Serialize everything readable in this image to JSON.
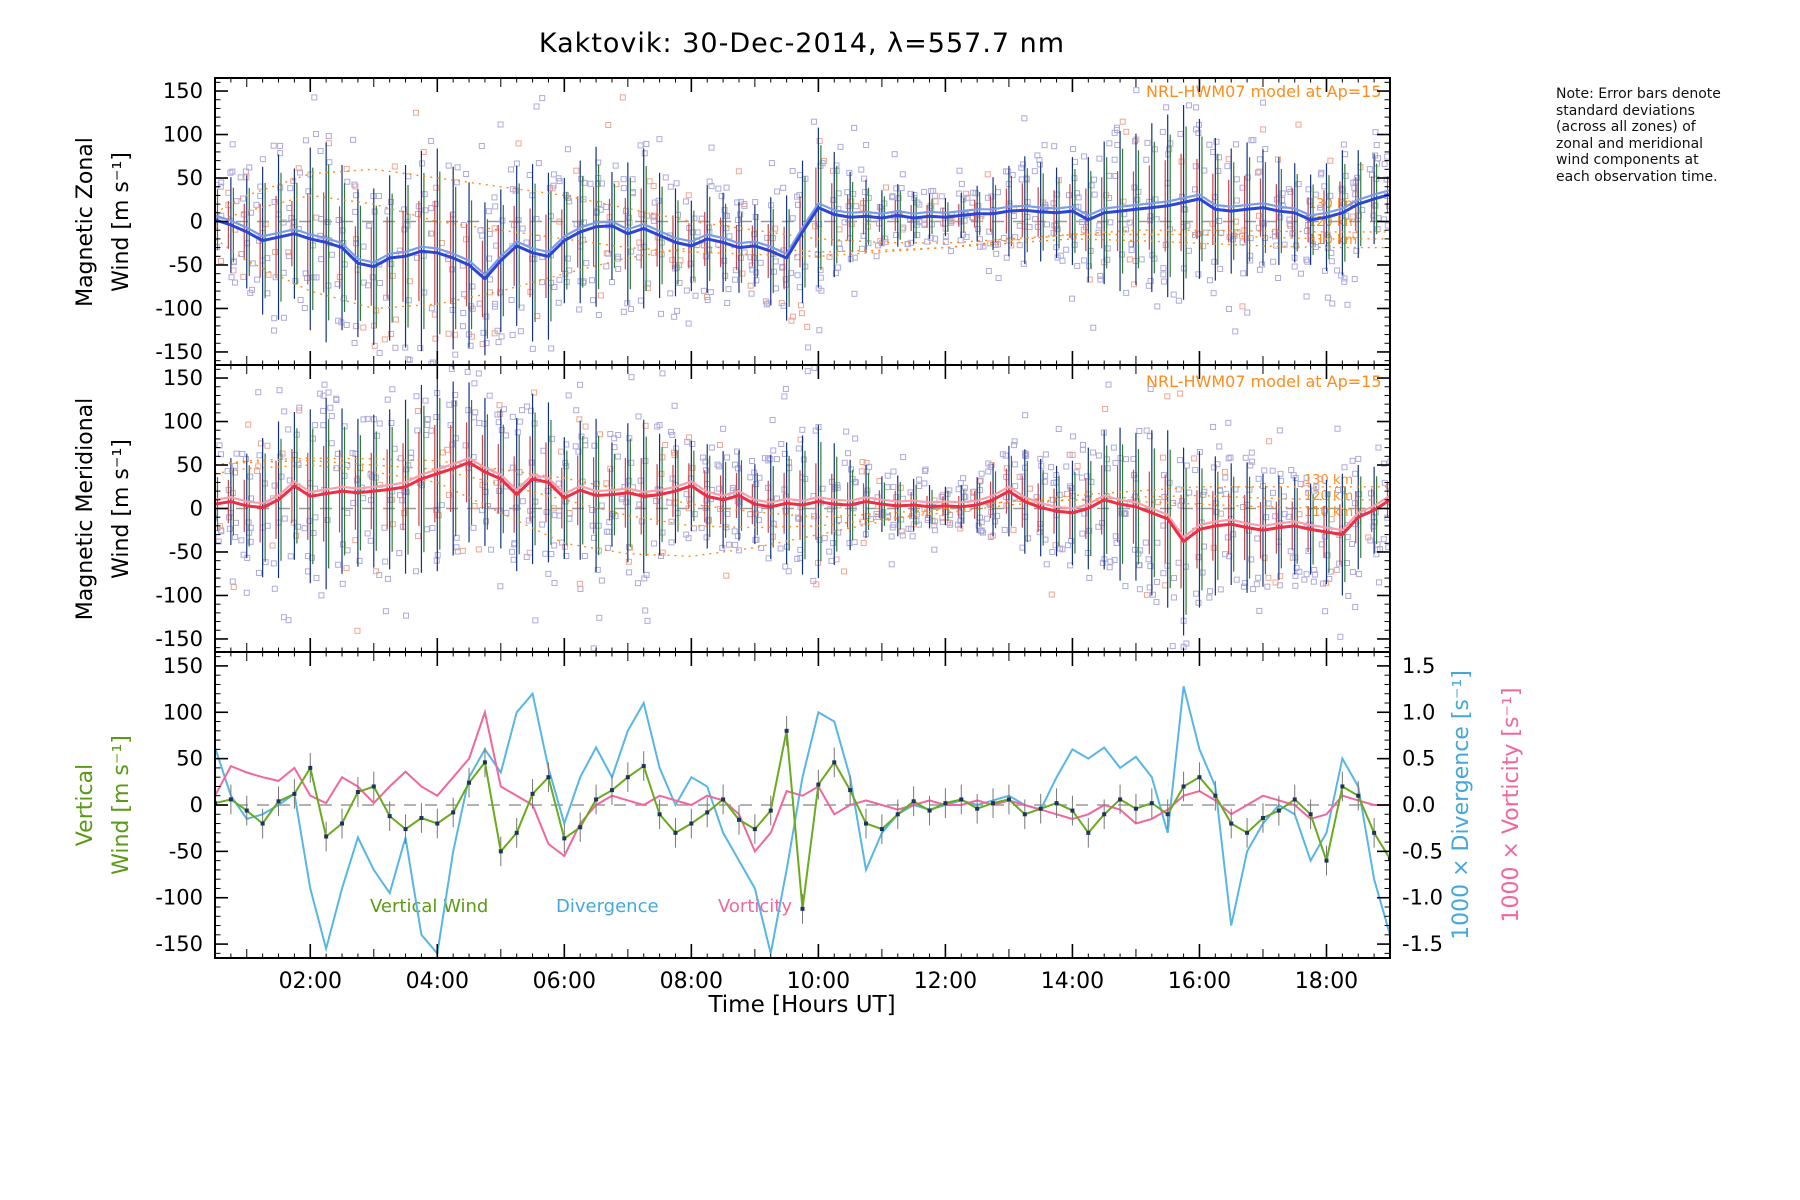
{
  "title": "Kaktovik: 30-Dec-2014, λ=557.7 nm",
  "note": "Note: Error bars denote standard deviations (across all zones) of zonal and meridional wind components at each observation time.",
  "xlabel": "Time [Hours UT]",
  "labels": {
    "panel1_line1": "Magnetic Zonal",
    "panel1_line2": "Wind [m s⁻¹]",
    "panel2_line1": "Magnetic Meridional",
    "panel2_line2": "Wind [m s⁻¹]",
    "panel3_line1": "Vertical",
    "panel3_line2": "Wind [m s⁻¹]",
    "right_div": "1000 × Divergence [s⁻¹]",
    "right_vort": "1000 × Vorticity [s⁻¹]",
    "model_label": "NRL-HWM07 model at Ap=15",
    "alt_130": "130 km",
    "alt_120": "120 km",
    "alt_110": "110 km",
    "legend_vertical": "Vertical Wind",
    "legend_divergence": "Divergence",
    "legend_vorticity": "Vorticity"
  },
  "colors": {
    "zonal_line": "#2b46d6",
    "zonal_line_light": "#7d9ce8",
    "meridional_line": "#ee2e44",
    "meridional_line_light": "#f6a0ae",
    "vertical_wind": "#6aaa1e",
    "divergence": "#58b6e4",
    "vorticity": "#f0679e",
    "model": "#ff8c1a",
    "scatter": "#aeaadc",
    "scatter_alt": "#efa592",
    "errbar_navy": "#16337f",
    "errbar_green": "#2f7d32",
    "errbar_red": "#cf4444",
    "zero_line": "#999999"
  },
  "chart_data": {
    "type": "line",
    "title": "Kaktovik: 30-Dec-2014, λ=557.7 nm",
    "xlabel": "Time [Hours UT]",
    "x_range": [
      0.5,
      19.0
    ],
    "x_ticks": {
      "t": [
        2,
        4,
        6,
        8,
        10,
        12,
        14,
        16,
        18
      ],
      "labels": [
        "02:00",
        "04:00",
        "06:00",
        "08:00",
        "10:00",
        "12:00",
        "14:00",
        "16:00",
        "18:00"
      ]
    },
    "ylim_wind": [
      -165,
      165
    ],
    "y_ticks_wind": [
      150,
      100,
      50,
      0,
      -50,
      -100,
      -150
    ],
    "ylim_right": [
      -1.65,
      1.65
    ],
    "y_ticks_right": [
      1.5,
      1.0,
      0.5,
      0.0,
      -0.5,
      -1.0,
      -1.5
    ],
    "t_start": 0.5,
    "t_step": 0.25,
    "panels": [
      {
        "name": "magnetic-zonal-wind",
        "ylabel": "Magnetic Zonal Wind [m s⁻¹]",
        "series": [
          {
            "name": "zonal-wind",
            "color": "#2b46d6",
            "color_light": "#7d9ce8",
            "values": [
              2,
              -4,
              -12,
              -22,
              -18,
              -14,
              -20,
              -24,
              -30,
              -48,
              -52,
              -42,
              -40,
              -34,
              -36,
              -42,
              -50,
              -66,
              -45,
              -28,
              -36,
              -40,
              -22,
              -12,
              -6,
              -5,
              -14,
              -8,
              -16,
              -24,
              -28,
              -20,
              -24,
              -30,
              -28,
              -34,
              -42,
              -12,
              16,
              8,
              5,
              6,
              4,
              7,
              4,
              6,
              5,
              7,
              9,
              9,
              12,
              13,
              11,
              10,
              12,
              2,
              10,
              12,
              14,
              16,
              18,
              22,
              26,
              14,
              12,
              14,
              16,
              12,
              10,
              2,
              5,
              10,
              20,
              26,
              31
            ],
            "err": [
              45,
              55,
              65,
              85,
              95,
              75,
              105,
              115,
              95,
              85,
              90,
              95,
              105,
              115,
              120,
              105,
              95,
              88,
              82,
              92,
              102,
              96,
              72,
              82,
              92,
              62,
              82,
              92,
              72,
              62,
              52,
              62,
              57,
              52,
              47,
              62,
              72,
              82,
              92,
              72,
              52,
              42,
              32,
              36,
              30,
              26,
              22,
              26,
              32,
              42,
              52,
              62,
              57,
              52,
              62,
              72,
              82,
              92,
              87,
              97,
              105,
              112,
              92,
              82,
              72,
              77,
              67,
              62,
              57,
              52,
              62,
              72,
              62,
              52,
              42
            ]
          }
        ],
        "model": {
          "label": "NRL-HWM07 model at Ap=15",
          "t": [
            0.5,
            1,
            2,
            3,
            4,
            5,
            6,
            7,
            8,
            9,
            10,
            11,
            12,
            13,
            14,
            15,
            16,
            17,
            18,
            19
          ],
          "alt_110": [
            -20,
            -45,
            -80,
            -100,
            -95,
            -80,
            -60,
            -42,
            -30,
            -30,
            -35,
            -33,
            -30,
            -25,
            -20,
            -22,
            -25,
            -28,
            -30,
            -30
          ],
          "alt_120": [
            0,
            12,
            30,
            20,
            0,
            -10,
            -20,
            -30,
            -35,
            -38,
            -40,
            -35,
            -30,
            -22,
            -15,
            -15,
            -15,
            -18,
            -20,
            -20
          ],
          "alt_130": [
            10,
            30,
            55,
            60,
            50,
            40,
            30,
            15,
            0,
            -10,
            -20,
            -24,
            -25,
            -20,
            -15,
            -10,
            -10,
            -11,
            -12,
            -12
          ]
        }
      },
      {
        "name": "magnetic-meridional-wind",
        "ylabel": "Magnetic Meridional Wind [m s⁻¹]",
        "series": [
          {
            "name": "meridional-wind",
            "color": "#ee2e44",
            "color_light": "#f6a0ae",
            "values": [
              5,
              8,
              3,
              1,
              10,
              26,
              14,
              17,
              20,
              18,
              20,
              22,
              25,
              34,
              40,
              46,
              53,
              42,
              34,
              16,
              34,
              30,
              12,
              21,
              15,
              16,
              18,
              14,
              16,
              20,
              26,
              14,
              10,
              15,
              5,
              2,
              6,
              4,
              8,
              5,
              4,
              8,
              5,
              3,
              4,
              2,
              3,
              2,
              4,
              10,
              20,
              8,
              1,
              -3,
              -5,
              0,
              10,
              5,
              2,
              -5,
              -12,
              -38,
              -24,
              -20,
              -18,
              -22,
              -25,
              -22,
              -20,
              -24,
              -27,
              -30,
              -10,
              -2,
              10
            ],
            "err": [
              40,
              50,
              60,
              80,
              90,
              85,
              100,
              110,
              95,
              85,
              88,
              92,
              100,
              108,
              112,
              100,
              92,
              85,
              80,
              88,
              98,
              92,
              70,
              80,
              88,
              60,
              80,
              88,
              70,
              60,
              52,
              60,
              56,
              52,
              46,
              60,
              70,
              80,
              88,
              70,
              52,
              42,
              32,
              35,
              30,
              25,
              22,
              25,
              32,
              42,
              52,
              60,
              56,
              52,
              60,
              70,
              80,
              88,
              85,
              95,
              102,
              108,
              90,
              80,
              70,
              75,
              65,
              60,
              56,
              52,
              60,
              70,
              60,
              50,
              40
            ]
          }
        ],
        "model": {
          "label": "NRL-HWM07 model at Ap=15",
          "t": [
            0.5,
            1,
            2,
            3,
            4,
            5,
            6,
            7,
            8,
            9,
            10,
            11,
            12,
            13,
            14,
            15,
            16,
            17,
            18,
            19
          ],
          "alt_110": [
            40,
            46,
            50,
            42,
            30,
            -5,
            -40,
            -52,
            -55,
            -45,
            -30,
            -15,
            0,
            8,
            10,
            8,
            5,
            2,
            0,
            0
          ],
          "alt_120": [
            50,
            53,
            55,
            50,
            45,
            28,
            10,
            -8,
            -20,
            -22,
            -20,
            -12,
            -5,
            4,
            10,
            13,
            15,
            12,
            10,
            10
          ],
          "alt_130": [
            50,
            55,
            58,
            57,
            55,
            45,
            35,
            20,
            5,
            -4,
            -10,
            -6,
            0,
            8,
            15,
            20,
            25,
            25,
            25,
            25
          ]
        }
      },
      {
        "name": "vertical-wind-divergence-vorticity",
        "ylabel_left": "Vertical Wind [m s⁻¹]",
        "ylabel_right_1": "1000 × Divergence [s⁻¹]",
        "ylabel_right_2": "1000 × Vorticity [s⁻¹]",
        "series": [
          {
            "name": "vertical-wind",
            "axis": "left",
            "color": "#6aaa1e",
            "err": 16,
            "values": [
              2,
              6,
              -6,
              -20,
              4,
              12,
              40,
              -34,
              -20,
              14,
              20,
              -12,
              -26,
              -14,
              -20,
              -8,
              24,
              46,
              -50,
              -30,
              12,
              30,
              -36,
              -24,
              6,
              16,
              30,
              42,
              -10,
              -30,
              -20,
              -8,
              6,
              -16,
              -26,
              -6,
              80,
              -112,
              22,
              46,
              16,
              -20,
              -26,
              -10,
              4,
              -6,
              2,
              6,
              -4,
              2,
              6,
              -10,
              -4,
              2,
              -6,
              -30,
              -10,
              6,
              -4,
              2,
              -10,
              20,
              30,
              10,
              -20,
              -30,
              -14,
              -6,
              6,
              -10,
              -60,
              20,
              10,
              -30,
              -58
            ]
          },
          {
            "name": "divergence",
            "axis": "right",
            "color": "#58b6e4",
            "values": [
              0.62,
              0.1,
              -0.15,
              -0.1,
              0.0,
              0.12,
              -0.9,
              -1.55,
              -0.9,
              -0.35,
              -0.7,
              -0.95,
              -0.35,
              -1.4,
              -1.6,
              -0.5,
              0.3,
              0.6,
              0.35,
              1.0,
              1.2,
              0.4,
              -0.2,
              0.3,
              0.62,
              0.3,
              0.8,
              1.1,
              0.4,
              0.0,
              0.3,
              0.2,
              -0.3,
              -0.6,
              -0.9,
              -1.6,
              -0.7,
              0.3,
              1.0,
              0.9,
              0.3,
              -0.7,
              -0.3,
              -0.1,
              0.0,
              -0.05,
              0.0,
              0.05,
              0.0,
              0.05,
              0.1,
              0.0,
              -0.05,
              0.3,
              0.6,
              0.5,
              0.62,
              0.4,
              0.52,
              0.3,
              -0.3,
              1.28,
              0.6,
              0.2,
              -1.3,
              -0.5,
              -0.2,
              0.0,
              -0.1,
              -0.6,
              -0.3,
              0.5,
              0.2,
              -0.8,
              -1.4
            ]
          },
          {
            "name": "vorticity",
            "axis": "right",
            "color": "#f0679e",
            "values": [
              0.1,
              0.42,
              0.35,
              0.3,
              0.26,
              0.4,
              0.1,
              0.02,
              0.3,
              0.2,
              0.02,
              0.2,
              0.36,
              0.2,
              0.1,
              0.3,
              0.5,
              1.0,
              0.2,
              0.1,
              0.0,
              -0.42,
              -0.55,
              -0.2,
              0.0,
              0.1,
              0.05,
              0.0,
              0.1,
              0.05,
              0.0,
              0.1,
              0.05,
              -0.1,
              -0.5,
              -0.3,
              0.15,
              0.1,
              0.2,
              -0.1,
              0.0,
              0.05,
              0.0,
              -0.05,
              0.0,
              0.05,
              0.0,
              0.0,
              0.05,
              0.0,
              0.05,
              0.0,
              -0.05,
              -0.1,
              -0.15,
              -0.1,
              0.0,
              -0.05,
              -0.2,
              -0.15,
              -0.05,
              0.1,
              0.15,
              0.05,
              -0.1,
              0.0,
              0.1,
              0.05,
              0.0,
              -0.15,
              -0.1,
              0.1,
              0.05,
              0.0,
              0.0
            ]
          }
        ]
      }
    ]
  }
}
